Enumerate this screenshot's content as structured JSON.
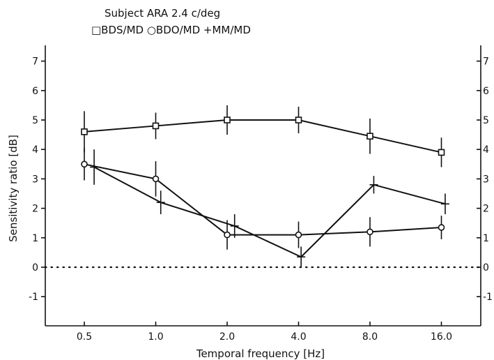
{
  "chart_data": {
    "type": "line",
    "title": "Subject ARA  2.4 c/deg",
    "legend_text": "□BDS/MD  ○BDO/MD  +MM/MD",
    "xlabel": "Temporal frequency [Hz]",
    "ylabel": "Sensitivity ratio [dB]",
    "x_scale": "log2",
    "categories": [
      "0.5",
      "1.0",
      "2.0",
      "4.0",
      "8.0",
      "16.0"
    ],
    "x_values": [
      0.5,
      1.0,
      2.0,
      4.0,
      8.0,
      16.0
    ],
    "ylim": [
      -2,
      7.5
    ],
    "yticks": [
      -1,
      0,
      1,
      2,
      3,
      4,
      5,
      6,
      7
    ],
    "ytick_labels": [
      "-1",
      "0",
      "1",
      "2",
      "3",
      "4",
      "5",
      "6",
      "7"
    ],
    "reference_line": {
      "y": 0,
      "style": "dotted"
    },
    "series": [
      {
        "name": "BDS/MD",
        "marker": "square",
        "x": [
          0.5,
          1.0,
          2.0,
          4.0,
          8.0,
          16.0
        ],
        "y": [
          4.6,
          4.8,
          5.0,
          5.0,
          4.45,
          3.9
        ],
        "err": [
          0.7,
          0.45,
          0.5,
          0.45,
          0.6,
          0.5
        ]
      },
      {
        "name": "BDO/MD",
        "marker": "circle",
        "x": [
          0.5,
          1.0,
          2.0,
          4.0,
          8.0,
          16.0
        ],
        "y": [
          3.5,
          3.0,
          1.1,
          1.1,
          1.2,
          1.35
        ],
        "err": [
          0.55,
          0.6,
          0.5,
          0.45,
          0.5,
          0.4
        ]
      },
      {
        "name": "MM/MD",
        "marker": "plus",
        "x": [
          0.55,
          1.05,
          2.15,
          4.1,
          8.3,
          16.6
        ],
        "y": [
          3.4,
          2.2,
          1.4,
          0.35,
          2.8,
          2.15
        ],
        "err": [
          0.6,
          0.4,
          0.4,
          0.35,
          0.3,
          0.35
        ]
      }
    ]
  }
}
